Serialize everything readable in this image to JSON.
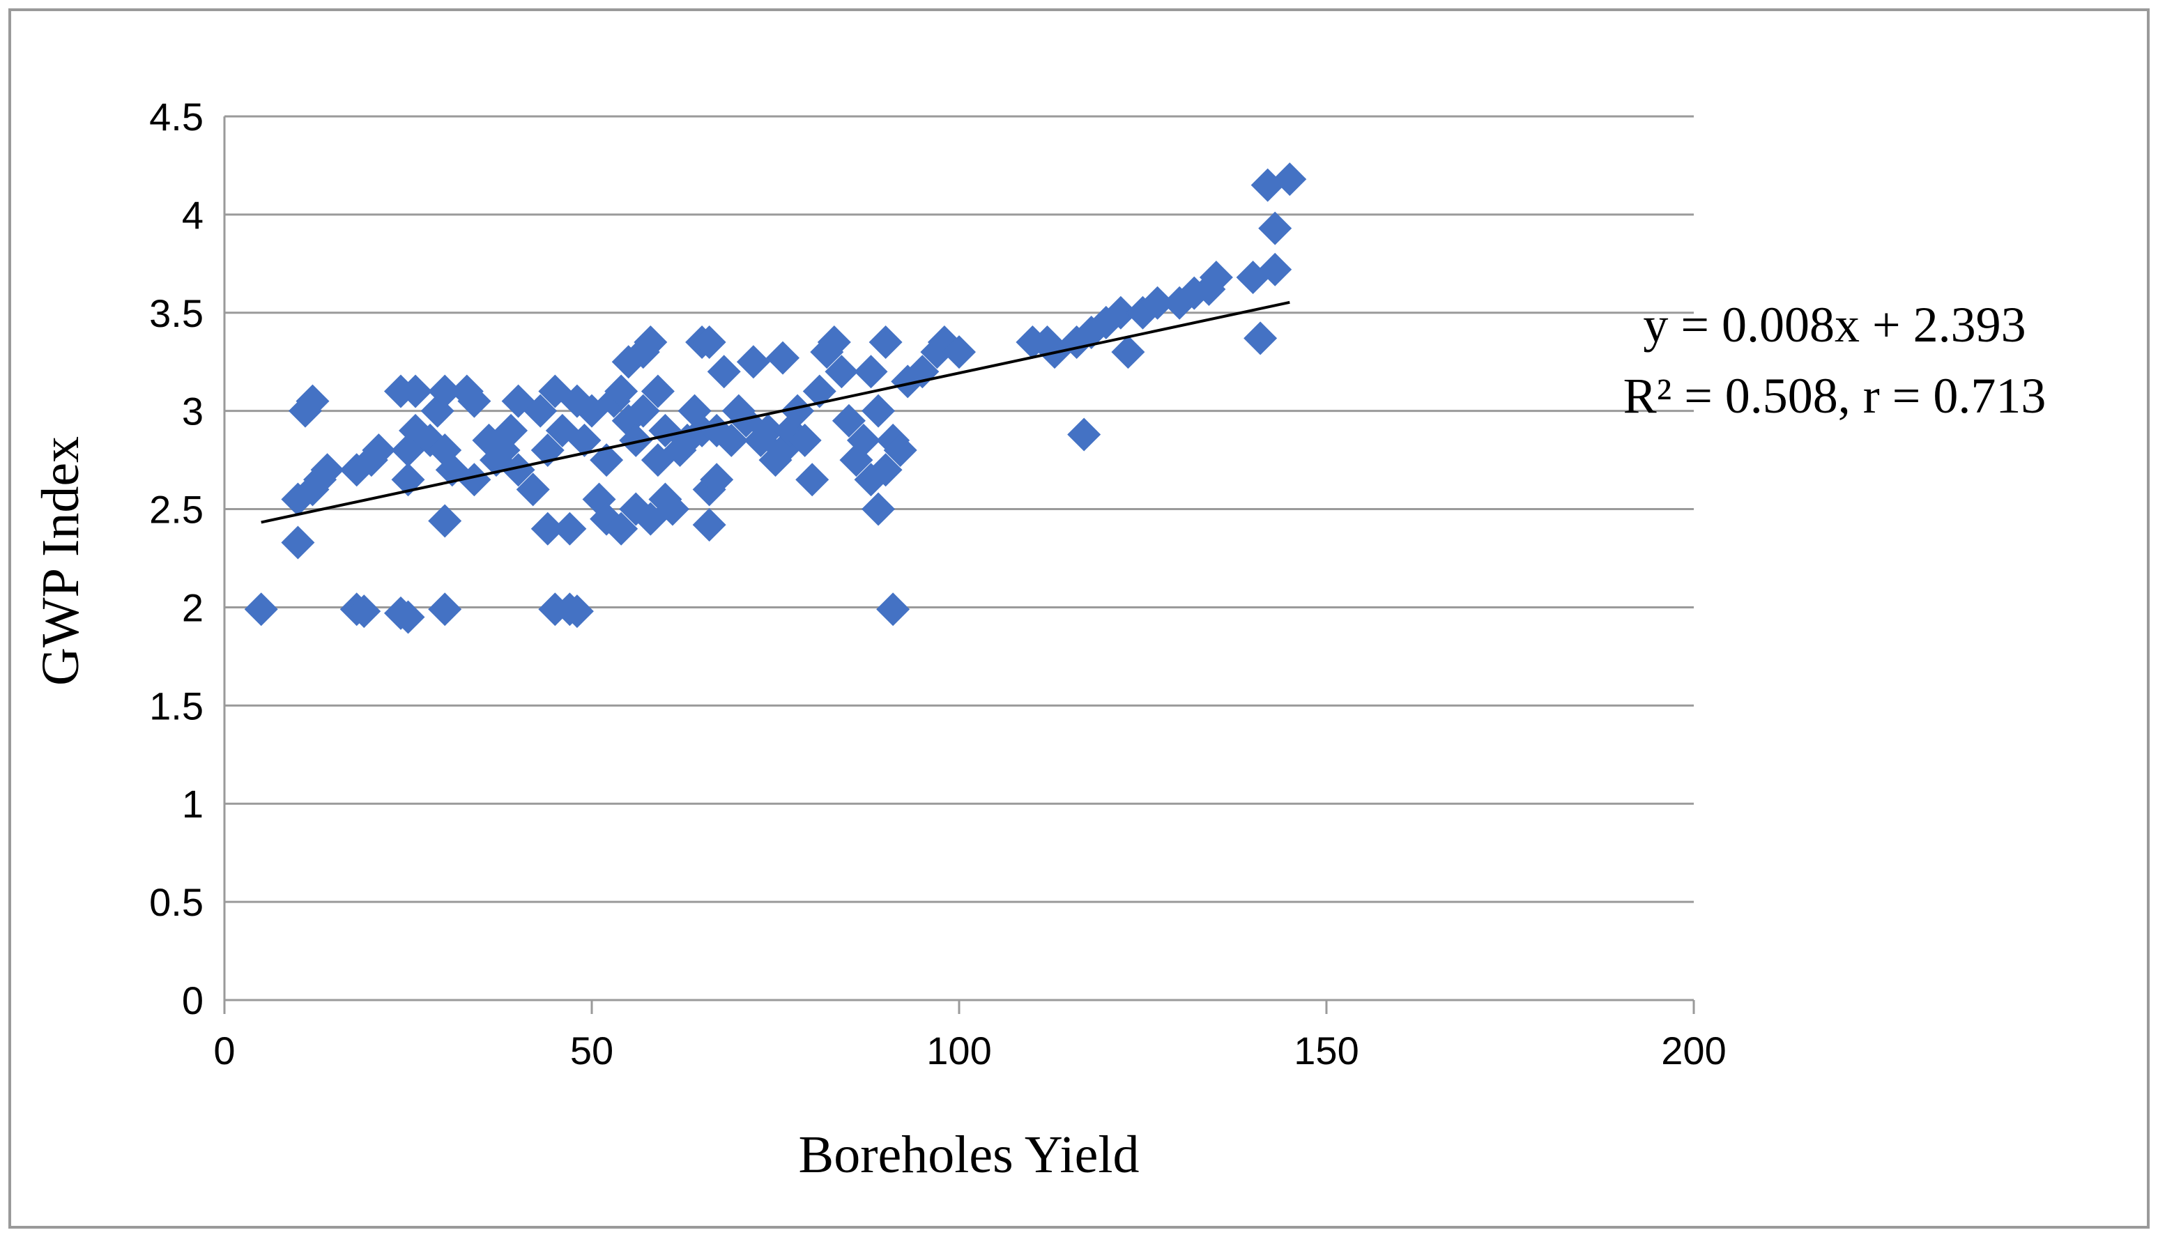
{
  "chart_data": {
    "type": "scatter",
    "xlabel": "Boreholes Yield",
    "ylabel": "GWP Index",
    "xlim": [
      0,
      200
    ],
    "ylim": [
      0,
      4.5
    ],
    "xticks": [
      "0",
      "50",
      "100",
      "150",
      "200"
    ],
    "yticks": [
      "0",
      "0.5",
      "1",
      "1.5",
      "2",
      "2.5",
      "3",
      "3.5",
      "4",
      "4.5"
    ],
    "grid": "horizontal",
    "marker": "diamond",
    "marker_color": "#4472C4",
    "trendline": {
      "slope": 0.008,
      "intercept": 2.393,
      "x_range": [
        5,
        145
      ],
      "color": "#000000"
    },
    "annotations": {
      "equation": "y = 0.008x + 2.393",
      "stats": "R² = 0.508, r = 0.713"
    },
    "points": [
      [
        5,
        1.99
      ],
      [
        10,
        2.33
      ],
      [
        10,
        2.55
      ],
      [
        11,
        3.0
      ],
      [
        12,
        3.05
      ],
      [
        12,
        2.6
      ],
      [
        13,
        2.65
      ],
      [
        14,
        2.7
      ],
      [
        18,
        1.99
      ],
      [
        18,
        2.7
      ],
      [
        19,
        1.98
      ],
      [
        20,
        2.75
      ],
      [
        21,
        2.8
      ],
      [
        24,
        1.97
      ],
      [
        24,
        3.1
      ],
      [
        25,
        2.65
      ],
      [
        25,
        1.95
      ],
      [
        25,
        2.8
      ],
      [
        26,
        2.9
      ],
      [
        26,
        3.1
      ],
      [
        28,
        2.85
      ],
      [
        29,
        3.0
      ],
      [
        30,
        2.44
      ],
      [
        30,
        1.99
      ],
      [
        30,
        3.1
      ],
      [
        30,
        2.8
      ],
      [
        31,
        2.7
      ],
      [
        33,
        3.1
      ],
      [
        34,
        3.05
      ],
      [
        34,
        2.65
      ],
      [
        36,
        2.85
      ],
      [
        37,
        2.75
      ],
      [
        38,
        2.8
      ],
      [
        39,
        2.9
      ],
      [
        40,
        3.05
      ],
      [
        40,
        2.7
      ],
      [
        42,
        2.6
      ],
      [
        43,
        3.0
      ],
      [
        44,
        2.8
      ],
      [
        44,
        2.4
      ],
      [
        45,
        1.99
      ],
      [
        45,
        3.1
      ],
      [
        46,
        2.9
      ],
      [
        47,
        2.4
      ],
      [
        47,
        1.99
      ],
      [
        48,
        3.05
      ],
      [
        48,
        1.98
      ],
      [
        49,
        2.85
      ],
      [
        50,
        3.0
      ],
      [
        51,
        2.55
      ],
      [
        52,
        2.45
      ],
      [
        52,
        2.75
      ],
      [
        53,
        3.05
      ],
      [
        54,
        2.4
      ],
      [
        54,
        3.1
      ],
      [
        55,
        3.25
      ],
      [
        55,
        2.95
      ],
      [
        56,
        2.5
      ],
      [
        56,
        2.85
      ],
      [
        57,
        3.3
      ],
      [
        57,
        3.0
      ],
      [
        58,
        2.45
      ],
      [
        58,
        3.35
      ],
      [
        59,
        3.1
      ],
      [
        59,
        2.75
      ],
      [
        60,
        2.55
      ],
      [
        60,
        2.9
      ],
      [
        61,
        2.5
      ],
      [
        62,
        2.8
      ],
      [
        63,
        2.85
      ],
      [
        64,
        3.0
      ],
      [
        65,
        2.9
      ],
      [
        65,
        3.35
      ],
      [
        66,
        3.35
      ],
      [
        66,
        2.42
      ],
      [
        66,
        2.6
      ],
      [
        67,
        2.65
      ],
      [
        67,
        2.9
      ],
      [
        68,
        3.2
      ],
      [
        69,
        2.85
      ],
      [
        70,
        3.0
      ],
      [
        71,
        2.95
      ],
      [
        72,
        3.25
      ],
      [
        73,
        2.85
      ],
      [
        74,
        2.9
      ],
      [
        75,
        2.75
      ],
      [
        76,
        3.27
      ],
      [
        76,
        2.8
      ],
      [
        77,
        2.9
      ],
      [
        78,
        3.0
      ],
      [
        79,
        2.85
      ],
      [
        80,
        2.65
      ],
      [
        81,
        3.1
      ],
      [
        82,
        3.3
      ],
      [
        83,
        3.35
      ],
      [
        84,
        3.2
      ],
      [
        85,
        2.95
      ],
      [
        86,
        2.75
      ],
      [
        87,
        2.85
      ],
      [
        88,
        3.2
      ],
      [
        88,
        2.65
      ],
      [
        89,
        2.5
      ],
      [
        89,
        3.0
      ],
      [
        90,
        3.35
      ],
      [
        90,
        2.7
      ],
      [
        91,
        1.99
      ],
      [
        91,
        2.85
      ],
      [
        92,
        2.8
      ],
      [
        93,
        3.15
      ],
      [
        95,
        3.2
      ],
      [
        97,
        3.3
      ],
      [
        98,
        3.35
      ],
      [
        100,
        3.3
      ],
      [
        110,
        3.35
      ],
      [
        112,
        3.35
      ],
      [
        113,
        3.3
      ],
      [
        116,
        3.35
      ],
      [
        117,
        2.88
      ],
      [
        118,
        3.4
      ],
      [
        120,
        3.45
      ],
      [
        122,
        3.5
      ],
      [
        123,
        3.3
      ],
      [
        125,
        3.5
      ],
      [
        127,
        3.55
      ],
      [
        130,
        3.55
      ],
      [
        132,
        3.6
      ],
      [
        134,
        3.62
      ],
      [
        135,
        3.68
      ],
      [
        140,
        3.68
      ],
      [
        141,
        3.37
      ],
      [
        142,
        4.15
      ],
      [
        143,
        3.72
      ],
      [
        143,
        3.93
      ],
      [
        145,
        4.18
      ]
    ]
  }
}
